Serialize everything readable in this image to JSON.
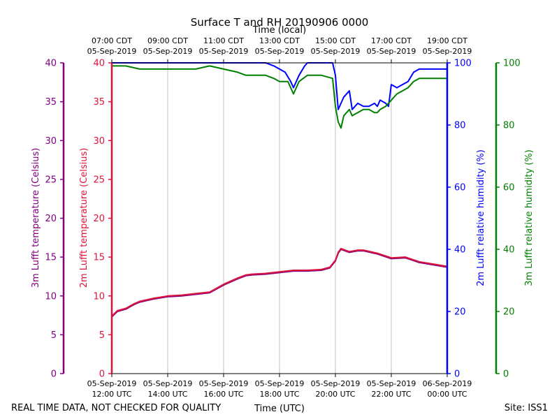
{
  "chart_data": {
    "type": "line",
    "title": "Surface T and RH 20190906 0000",
    "top_xlabel": "Time (local)",
    "xlabel": "Time (UTC)",
    "footer_left": "REAL TIME DATA, NOT CHECKED FOR QUALITY",
    "footer_right": "Site: ISS1",
    "x_range": [
      "2019-09-05 12:00 UTC",
      "2019-09-06 00:00 UTC"
    ],
    "grid": "vertical",
    "colors": {
      "purple": "#800080",
      "crimson": "#dc143c",
      "blue": "#0000ff",
      "green": "#008000",
      "navy": "#000080"
    },
    "bottom_ticks": [
      {
        "hour": 12,
        "l1": "05-Sep-2019",
        "l2": "12:00 UTC"
      },
      {
        "hour": 14,
        "l1": "05-Sep-2019",
        "l2": "14:00 UTC"
      },
      {
        "hour": 16,
        "l1": "05-Sep-2019",
        "l2": "16:00 UTC"
      },
      {
        "hour": 18,
        "l1": "05-Sep-2019",
        "l2": "18:00 UTC"
      },
      {
        "hour": 20,
        "l1": "05-Sep-2019",
        "l2": "20:00 UTC"
      },
      {
        "hour": 22,
        "l1": "05-Sep-2019",
        "l2": "22:00 UTC"
      },
      {
        "hour": 24,
        "l1": "06-Sep-2019",
        "l2": "00:00 UTC"
      }
    ],
    "top_ticks": [
      {
        "hour": 12,
        "l1": "07:00 CDT",
        "l2": "05-Sep-2019"
      },
      {
        "hour": 14,
        "l1": "09:00 CDT",
        "l2": "05-Sep-2019"
      },
      {
        "hour": 16,
        "l1": "11:00 CDT",
        "l2": "05-Sep-2019"
      },
      {
        "hour": 18,
        "l1": "13:00 CDT",
        "l2": "05-Sep-2019"
      },
      {
        "hour": 20,
        "l1": "15:00 CDT",
        "l2": "05-Sep-2019"
      },
      {
        "hour": 22,
        "l1": "17:00 CDT",
        "l2": "05-Sep-2019"
      },
      {
        "hour": 24,
        "l1": "19:00 CDT",
        "l2": "05-Sep-2019"
      }
    ],
    "axes": [
      {
        "id": "t3",
        "label": "3m Lufft temperature (Celsius)",
        "range": [
          0,
          40
        ],
        "ticks": [
          0,
          5,
          10,
          15,
          20,
          25,
          30,
          35,
          40
        ],
        "color": "#800080"
      },
      {
        "id": "t2",
        "label": "2m Lufft temperature (Celsius)",
        "range": [
          0,
          40
        ],
        "ticks": [
          0,
          5,
          10,
          15,
          20,
          25,
          30,
          35,
          40
        ],
        "color": "#dc143c"
      },
      {
        "id": "rh2",
        "label": "2m Lufft relative humidity (%)",
        "range": [
          0,
          100
        ],
        "ticks": [
          0,
          20,
          40,
          60,
          80,
          100
        ],
        "color": "#0000ff"
      },
      {
        "id": "rh3",
        "label": "3m Lufft relative humidity (%)",
        "range": [
          0,
          100
        ],
        "ticks": [
          0,
          20,
          40,
          60,
          80,
          100
        ],
        "color": "#008000"
      }
    ],
    "series": [
      {
        "axis": "rh2",
        "color": "#0000ff",
        "x": [
          12.0,
          12.5,
          13.0,
          13.5,
          14.0,
          14.5,
          15.0,
          15.5,
          16.0,
          16.5,
          17.0,
          17.5,
          17.8,
          18.2,
          18.4,
          18.5,
          18.7,
          18.9,
          19.0,
          19.5,
          19.9,
          20.0,
          20.1,
          20.2,
          20.3,
          20.5,
          20.6,
          20.8,
          21.0,
          21.2,
          21.4,
          21.5,
          21.6,
          21.8,
          21.9,
          22.0,
          22.2,
          22.4,
          22.6,
          22.8,
          23.0,
          23.5,
          24.0
        ],
        "y": [
          100,
          100,
          100,
          100,
          100,
          100,
          100,
          100,
          100,
          100,
          100,
          100,
          99,
          97,
          94,
          92,
          96,
          99,
          100,
          100,
          100,
          96,
          85,
          87,
          89,
          91,
          85,
          87,
          86,
          86,
          87,
          86,
          88,
          87,
          86,
          93,
          92,
          93,
          94,
          97,
          98,
          98,
          98
        ]
      },
      {
        "axis": "rh3",
        "color": "#008000",
        "x": [
          12.0,
          12.5,
          13.0,
          13.5,
          14.0,
          14.5,
          15.0,
          15.5,
          16.0,
          16.5,
          16.8,
          17.0,
          17.5,
          17.8,
          18.0,
          18.3,
          18.5,
          18.7,
          19.0,
          19.5,
          19.9,
          20.0,
          20.1,
          20.2,
          20.3,
          20.5,
          20.6,
          20.8,
          21.0,
          21.2,
          21.4,
          21.5,
          21.6,
          21.8,
          22.0,
          22.2,
          22.4,
          22.6,
          22.8,
          23.0,
          23.5,
          24.0
        ],
        "y": [
          99,
          99,
          98,
          98,
          98,
          98,
          98,
          99,
          98,
          97,
          96,
          96,
          96,
          95,
          94,
          94,
          90,
          94,
          96,
          96,
          95,
          86,
          81,
          79,
          83,
          85,
          83,
          84,
          85,
          85,
          84,
          84,
          85,
          86,
          88,
          90,
          91,
          92,
          94,
          95,
          95,
          95
        ]
      },
      {
        "axis": "t3",
        "color": "#800080",
        "x": [
          12.0,
          12.2,
          12.5,
          12.8,
          13.0,
          13.5,
          14.0,
          14.5,
          15.0,
          15.5,
          16.0,
          16.5,
          16.8,
          17.0,
          17.5,
          18.0,
          18.5,
          19.0,
          19.5,
          19.8,
          20.0,
          20.1,
          20.2,
          20.5,
          20.8,
          21.0,
          21.5,
          22.0,
          22.5,
          23.0,
          23.5,
          24.0
        ],
        "y": [
          7.3,
          8.0,
          8.3,
          8.9,
          9.2,
          9.6,
          9.9,
          10.0,
          10.2,
          10.4,
          11.4,
          12.2,
          12.6,
          12.7,
          12.8,
          13.0,
          13.2,
          13.2,
          13.3,
          13.6,
          14.5,
          15.5,
          16.0,
          15.6,
          15.8,
          15.8,
          15.4,
          14.8,
          14.9,
          14.3,
          14.0,
          13.7
        ]
      },
      {
        "axis": "t2",
        "color": "#dc143c",
        "x": [
          12.0,
          12.2,
          12.5,
          12.8,
          13.0,
          13.5,
          14.0,
          14.5,
          15.0,
          15.5,
          16.0,
          16.5,
          16.8,
          17.0,
          17.5,
          18.0,
          18.5,
          19.0,
          19.5,
          19.8,
          20.0,
          20.1,
          20.2,
          20.5,
          20.8,
          21.0,
          21.5,
          22.0,
          22.5,
          23.0,
          23.5,
          24.0
        ],
        "y": [
          7.4,
          8.1,
          8.4,
          9.0,
          9.3,
          9.7,
          10.0,
          10.1,
          10.3,
          10.5,
          11.5,
          12.3,
          12.7,
          12.8,
          12.9,
          13.1,
          13.3,
          13.3,
          13.4,
          13.7,
          14.6,
          15.6,
          16.1,
          15.7,
          15.9,
          15.9,
          15.5,
          14.9,
          15.0,
          14.4,
          14.1,
          13.8
        ]
      }
    ]
  }
}
